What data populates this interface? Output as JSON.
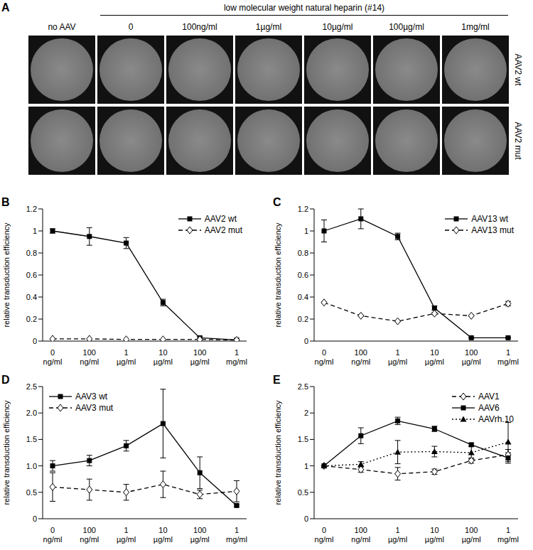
{
  "panel_a": {
    "panel": "A",
    "title": "low molecular weight natural heparin (#14)",
    "columns": [
      "no AAV",
      "0",
      "100ng/ml",
      "1µg/ml",
      "10µg/ml",
      "100µg/ml",
      "1mg/ml"
    ],
    "rows": [
      "AAV2 wt",
      "AAV2 mut"
    ]
  },
  "chart_data": [
    {
      "panel": "B",
      "type": "line",
      "y_label": "relative transduction efficiency",
      "categories": [
        "0 ng/ml",
        "100 ng/ml",
        "1 µg/ml",
        "10 µg/ml",
        "100 µg/ml",
        "1 mg/ml"
      ],
      "ylim": [
        0,
        1.2
      ],
      "yticks": [
        0,
        0.2,
        0.4,
        0.6,
        0.8,
        1,
        1.2
      ],
      "legend": "upper right",
      "series": [
        {
          "name": "AAV2 wt",
          "color": "#000000",
          "marker": "square",
          "line_style": "solid",
          "values": [
            1.0,
            0.95,
            0.89,
            0.35,
            0.03,
            0.01
          ],
          "errors": [
            0.02,
            0.08,
            0.05,
            0.03,
            0.01,
            0.005
          ]
        },
        {
          "name": "AAV2 mut",
          "color": "#000000",
          "marker": "open-diamond",
          "line_style": "dashed",
          "values": [
            0.02,
            0.02,
            0.015,
            0.015,
            0.015,
            0.01
          ]
        }
      ]
    },
    {
      "panel": "C",
      "type": "line",
      "y_label": "relative transduction efficiency",
      "categories": [
        "0 ng/ml",
        "100 ng/ml",
        "1 µg/ml",
        "10 µg/ml",
        "100 µg/ml",
        "1 mg/ml"
      ],
      "ylim": [
        0,
        1.2
      ],
      "yticks": [
        0,
        0.2,
        0.4,
        0.6,
        0.8,
        1,
        1.2
      ],
      "legend": "upper right",
      "series": [
        {
          "name": "AAV13 wt",
          "color": "#000000",
          "marker": "square",
          "line_style": "solid",
          "values": [
            1.0,
            1.11,
            0.95,
            0.3,
            0.03,
            0.03
          ],
          "errors": [
            0.1,
            0.09,
            0.03,
            0.02,
            0.005,
            0.005
          ]
        },
        {
          "name": "AAV13 mut",
          "color": "#000000",
          "marker": "open-diamond",
          "line_style": "dashed",
          "values": [
            0.35,
            0.23,
            0.18,
            0.25,
            0.23,
            0.34
          ],
          "errors": [
            0.005,
            0.005,
            0.005,
            0.01,
            0.005,
            0.02
          ]
        }
      ]
    },
    {
      "panel": "D",
      "type": "line",
      "y_label": "relative transduction efficiency",
      "categories": [
        "0 ng/ml",
        "100 ng/ml",
        "1 µg/ml",
        "10 µg/ml",
        "100 µg/ml",
        "1 mg/ml"
      ],
      "ylim": [
        0,
        2.5
      ],
      "yticks": [
        0,
        0.5,
        {
          "value": 1,
          "label": "1.0"
        },
        1.5,
        {
          "value": 2,
          "label": "2.0"
        },
        2.5
      ],
      "legend": "upper left",
      "series": [
        {
          "name": "AAV3 wt",
          "color": "#000000",
          "marker": "square",
          "line_style": "solid",
          "values": [
            1.0,
            1.1,
            1.38,
            1.8,
            0.87,
            0.25
          ],
          "errors": [
            0.1,
            0.1,
            0.1,
            0.65,
            0.3,
            0.02
          ]
        },
        {
          "name": "AAV3 mut",
          "color": "#000000",
          "marker": "open-diamond",
          "line_style": "dashed",
          "values": [
            0.6,
            0.55,
            0.5,
            0.65,
            0.46,
            0.52
          ],
          "errors": [
            0.27,
            0.2,
            0.15,
            0.25,
            0.08,
            0.2
          ]
        }
      ]
    },
    {
      "panel": "E",
      "type": "line",
      "y_label": "relative transduction efficiency",
      "categories": [
        "0 ng/ml",
        "100 ng/ml",
        "1 µg/ml",
        "10 µg/ml",
        "100 µg/ml",
        "1 mg/ml"
      ],
      "ylim": [
        0,
        2.5
      ],
      "yticks": [
        0,
        0.5,
        1,
        1.5,
        2,
        2.5
      ],
      "legend": "upper right",
      "series": [
        {
          "name": "AAV1",
          "color": "#000000",
          "marker": "open-diamond",
          "line_style": "dashed",
          "values": [
            1.0,
            0.93,
            0.85,
            0.89,
            1.1,
            1.21
          ],
          "errors": [
            0,
            0.05,
            0.12,
            0.05,
            0.05,
            0.1
          ]
        },
        {
          "name": "AAV6",
          "color": "#000000",
          "marker": "square",
          "line_style": "solid",
          "values": [
            1.0,
            1.57,
            1.85,
            1.7,
            1.4,
            1.15
          ],
          "errors": [
            0,
            0.15,
            0.07,
            0.05,
            0.03,
            0.1
          ]
        },
        {
          "name": "AAVrh.10",
          "color": "#000000",
          "marker": "triangle",
          "line_style": "dotted",
          "values": [
            1.0,
            1.03,
            1.26,
            1.27,
            1.25,
            1.45
          ],
          "errors": [
            0,
            0.05,
            0.22,
            0.1,
            0.12,
            0.37
          ]
        }
      ]
    }
  ]
}
